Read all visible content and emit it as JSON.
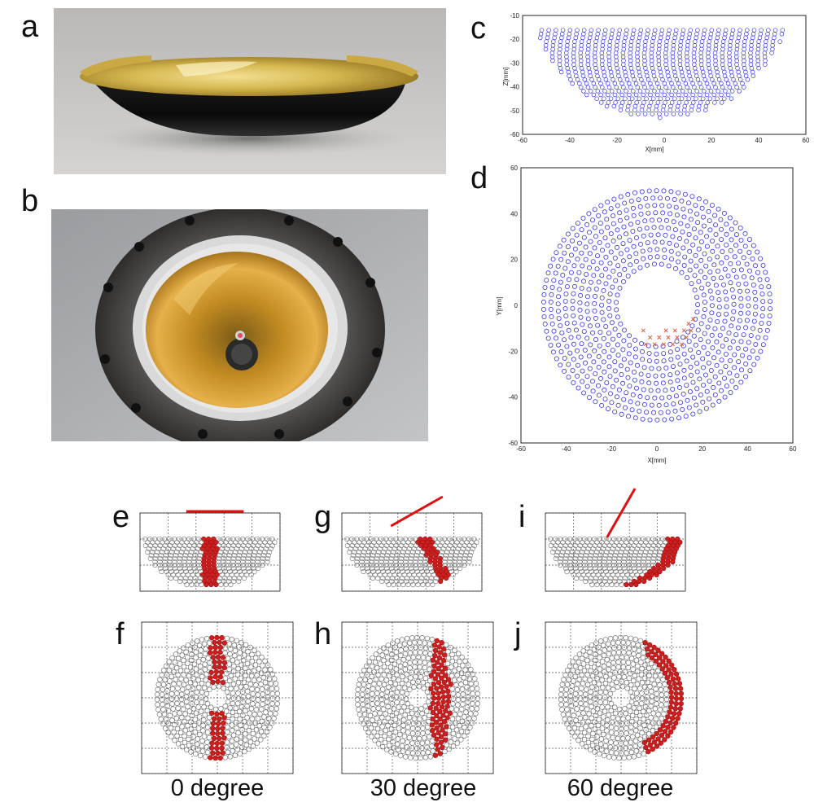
{
  "panel_labels": {
    "a": "a",
    "b": "b",
    "c": "c",
    "d": "d",
    "e": "e",
    "f": "f",
    "g": "g",
    "h": "h",
    "i": "i",
    "j": "j"
  },
  "captions": {
    "deg0": "0 degree",
    "deg30": "30 degree",
    "deg60": "60 degree"
  },
  "chart_data": [
    {
      "panel": "c",
      "type": "scatter",
      "title": "",
      "xlabel": "X[mm]",
      "ylabel": "Z[mm]",
      "xlim": [
        -60,
        60
      ],
      "ylim": [
        -60,
        -10
      ],
      "xticks": [
        "-60",
        "-40",
        "-20",
        "0",
        "20",
        "40",
        "60"
      ],
      "yticks": [
        "-10",
        "-20",
        "-30",
        "-40",
        "-50",
        "-60"
      ],
      "series": [
        {
          "marker": "circle",
          "color": "#3535e6",
          "shape": "bowl cross-section, rim at Z≈-15 spanning X≈-53..53, bottom at Z≈-53"
        }
      ]
    },
    {
      "panel": "d",
      "type": "scatter",
      "title": "",
      "xlabel": "X[mm]",
      "ylabel": "Y[mm]",
      "xlim": [
        -60,
        60
      ],
      "ylim": [
        -60,
        60
      ],
      "xticks": [
        "-60",
        "-40",
        "-20",
        "0",
        "20",
        "40",
        "60"
      ],
      "yticks": [
        "60",
        "40",
        "20",
        "0",
        "-20",
        "-40",
        "-60"
      ],
      "series": [
        {
          "marker": "circle",
          "color": "#3535e6",
          "shape": "annulus, outer radius ≈53 mm, inner radius ≈16 mm, centre (0,0)"
        },
        {
          "marker": "x",
          "color": "#e25a3a",
          "points": [
            [
              -5,
              -17
            ],
            [
              -1,
              -17
            ],
            [
              3,
              -17
            ],
            [
              7,
              -17
            ],
            [
              11,
              -17
            ],
            [
              -3,
              -14
            ],
            [
              1,
              -14
            ],
            [
              5,
              -14
            ],
            [
              9,
              -14
            ],
            [
              13,
              -14
            ],
            [
              -6,
              -11
            ],
            [
              4,
              -11
            ],
            [
              8,
              -11
            ],
            [
              12,
              -11
            ],
            [
              15,
              -11
            ],
            [
              14,
              -8
            ],
            [
              16,
              -6
            ]
          ]
        }
      ]
    }
  ],
  "incidence_panels": [
    {
      "top": "e",
      "bottom": "f",
      "angle": 0,
      "caption": "0 degree"
    },
    {
      "top": "g",
      "bottom": "h",
      "angle": 30,
      "caption": "30 degree"
    },
    {
      "top": "i",
      "bottom": "j",
      "angle": 60,
      "caption": "60 degree"
    }
  ],
  "colors": {
    "blue_marker": "#3535e6",
    "red_marker": "#cc1f1f",
    "beam_line": "#e01010",
    "grey_marker": "#777777"
  }
}
